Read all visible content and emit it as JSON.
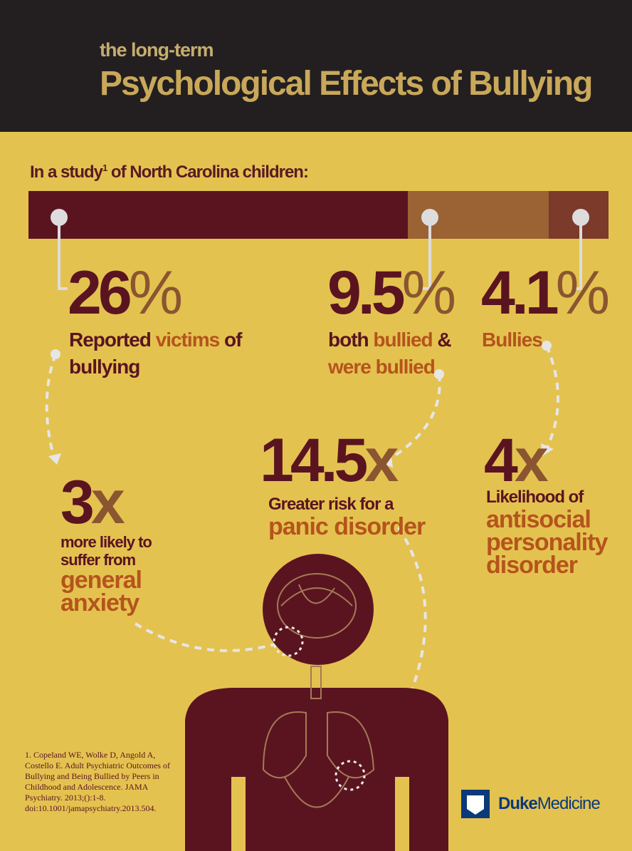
{
  "header": {
    "subtitle": "the long-term",
    "title": "Psychological Effects of Bullying"
  },
  "intro": {
    "before": "In a study",
    "note": "1",
    "after": " of North Carolina children:"
  },
  "stats": [
    {
      "number": "26",
      "unit": "%",
      "parts": [
        "Reported ",
        "victims",
        " of",
        "bullying"
      ]
    },
    {
      "number": "9.5",
      "unit": "%",
      "parts": [
        "both ",
        "bullied",
        " &",
        "were bullied"
      ]
    },
    {
      "number": "4.1",
      "unit": "%",
      "parts": [
        "Bullies"
      ]
    }
  ],
  "outcomes": [
    {
      "number": "3",
      "unit": "x",
      "lines": [
        "more likely to",
        "suffer from"
      ],
      "highlight": [
        "general",
        "anxiety"
      ]
    },
    {
      "number": "14.5",
      "unit": "x",
      "lines": [
        "Greater risk for a"
      ],
      "highlight": [
        "panic disorder"
      ]
    },
    {
      "number": "4",
      "unit": "x",
      "lines": [
        "Likelihood of"
      ],
      "highlight": [
        "antisocial",
        "personality",
        "disorder"
      ]
    }
  ],
  "footnote": "1. Copeland WE, Wolke D, Angold A, Costello E. Adult Psychiatric Outcomes of Bullying and Being Bullied by Peers in Childhood and Adolescence. JAMA Psychiatry. 2013;():1-8. doi:10.1001/jamapsychiatry.2013.504.",
  "logo": {
    "bold": "Duke",
    "light": "Medicine"
  }
}
